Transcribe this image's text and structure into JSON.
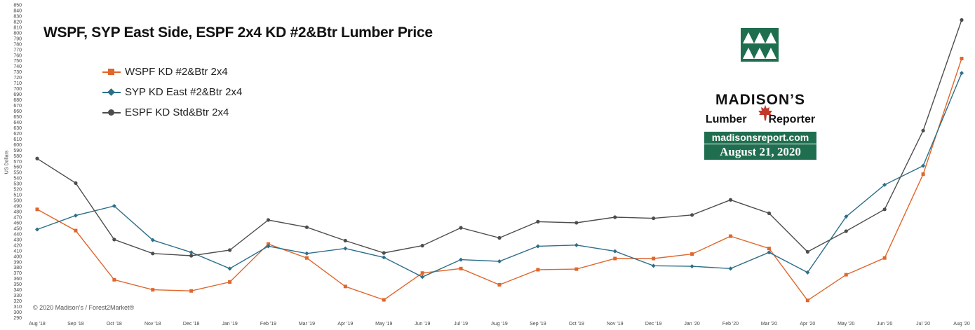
{
  "title": "WSPF, SYP East Side, ESPF 2x4 KD #2&Btr Lumber Price",
  "copyright": "© 2020 Madison’s / Forest2Market®",
  "logo": {
    "name": "MADISON’S",
    "sub_left": "Lumber",
    "sub_right": "Reporter",
    "url": "madisonsreport.com",
    "date": "August 21, 2020"
  },
  "colors": {
    "wspf": "#e0662b",
    "syp": "#2c6f88",
    "espf": "#4d4d4d",
    "brand": "#1f6e4f"
  },
  "chart_data": {
    "type": "line",
    "ylabel": "US Dollars",
    "xlabel": "",
    "ylim": [
      290,
      850
    ],
    "ytick_step": 10,
    "grid": false,
    "legend_position": "top-left",
    "categories": [
      "Aug '18",
      "Sep '18",
      "Oct '18",
      "Nov '18",
      "Dec '18",
      "Jan '19",
      "Feb '19",
      "Mar '19",
      "Apr '19",
      "May '19",
      "Jun '19",
      "Jul '19",
      "Aug '19",
      "Sep '19",
      "Oct '19",
      "Nov '19",
      "Dec '19",
      "Jan '20",
      "Feb '20",
      "Mar '20",
      "Apr '20",
      "May '20",
      "Jun '20",
      "Jul '20",
      "Aug '20"
    ],
    "series": [
      {
        "name": "WSPF KD #2&Btr 2x4",
        "marker": "square",
        "values": [
          484,
          446,
          358,
          340,
          338,
          354,
          422,
          397,
          346,
          322,
          370,
          378,
          349,
          376,
          377,
          396,
          396,
          404,
          436,
          414,
          321,
          367,
          397,
          547,
          754
        ]
      },
      {
        "name": "SYP KD East #2&Btr 2x4",
        "marker": "diamond",
        "values": [
          448,
          473,
          490,
          429,
          407,
          378,
          418,
          405,
          414,
          398,
          363,
          394,
          391,
          418,
          420,
          409,
          383,
          382,
          378,
          407,
          371,
          471,
          528,
          562,
          728
        ]
      },
      {
        "name": "ESPF KD Std&Btr 2x4",
        "marker": "circle",
        "values": [
          575,
          531,
          430,
          405,
          401,
          411,
          465,
          452,
          428,
          406,
          419,
          451,
          433,
          462,
          460,
          470,
          468,
          474,
          501,
          477,
          408,
          445,
          484,
          625,
          823
        ]
      }
    ]
  }
}
